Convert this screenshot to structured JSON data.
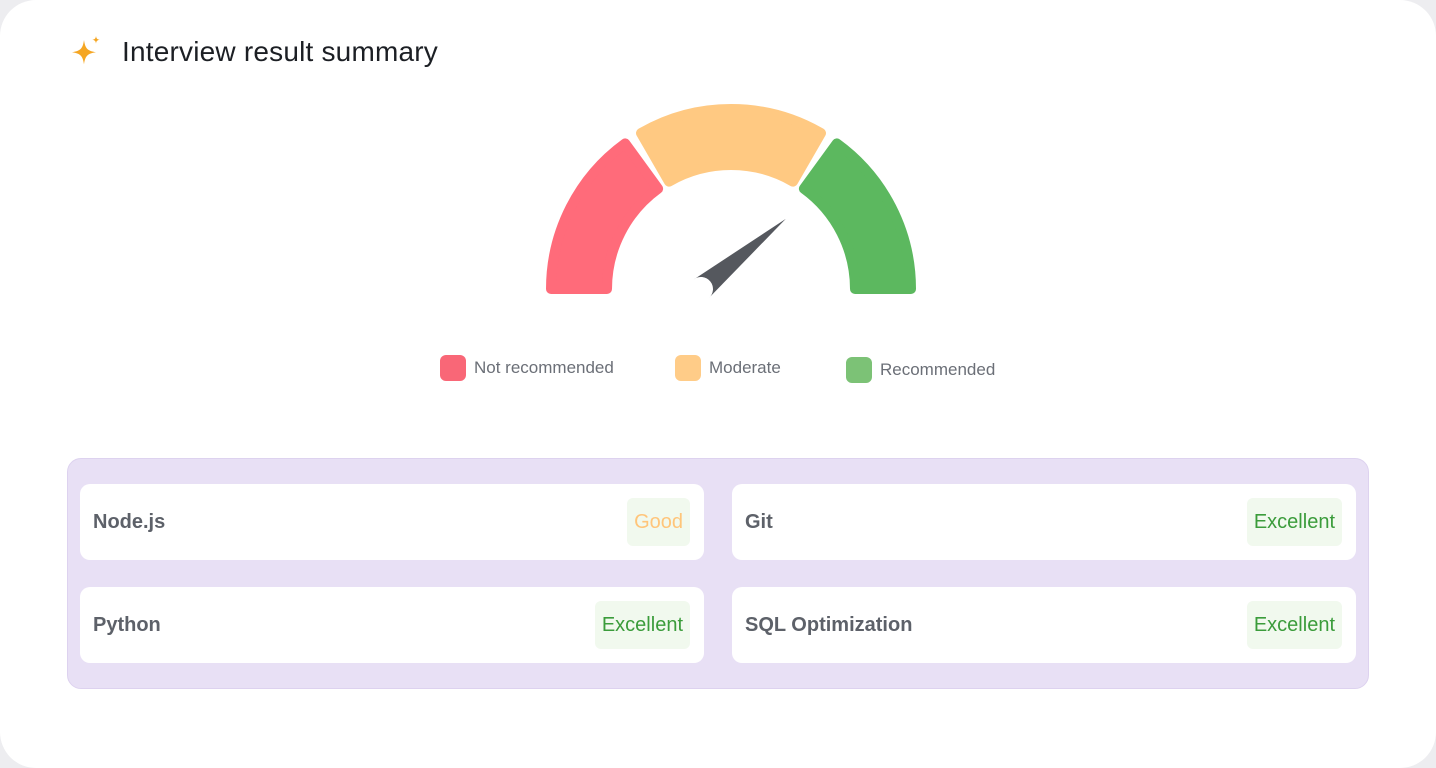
{
  "header": {
    "title": "Interview result summary",
    "icon": "sparkle-icon",
    "icon_color": "#f5a623"
  },
  "gauge": {
    "needle_value": 0.78,
    "segments": [
      {
        "name": "Not recommended",
        "color": "#ff6b7a"
      },
      {
        "name": "Moderate",
        "color": "#ffc982"
      },
      {
        "name": "Recommended",
        "color": "#5cb85f"
      }
    ],
    "needle_color": "#55585e"
  },
  "legend": {
    "items": [
      {
        "label": "Not recommended",
        "color": "#f96777"
      },
      {
        "label": "Moderate",
        "color": "#ffcc88"
      },
      {
        "label": "Recommended",
        "color": "#7cc276"
      }
    ]
  },
  "skills": [
    {
      "name": "Node.js",
      "rating": "Good"
    },
    {
      "name": "Git",
      "rating": "Excellent"
    },
    {
      "name": "Python",
      "rating": "Excellent"
    },
    {
      "name": "SQL Optimization",
      "rating": "Excellent"
    }
  ],
  "colors": {
    "panel_bg": "#e8e0f5",
    "good": "#ffc57a",
    "excellent": "#3b9c3b",
    "badge_bg": "#f1f9ee"
  }
}
